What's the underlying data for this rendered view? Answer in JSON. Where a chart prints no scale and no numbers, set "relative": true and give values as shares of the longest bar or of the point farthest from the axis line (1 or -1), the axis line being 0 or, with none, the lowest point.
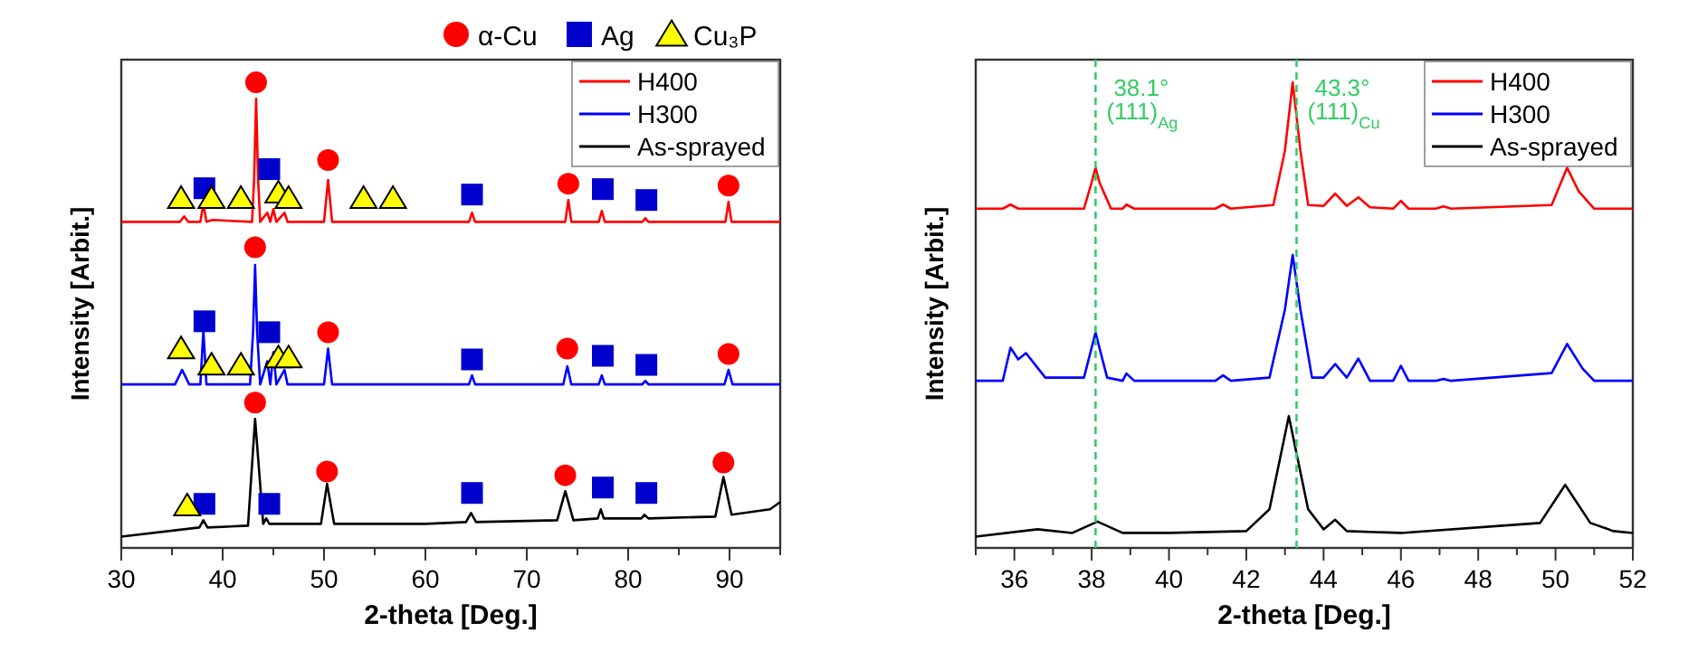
{
  "chart_data": [
    {
      "type": "line",
      "xlabel": "2-theta [Deg.]",
      "ylabel": "Intensity [Arbit.]",
      "relative": true,
      "xlim": [
        30,
        95
      ],
      "xticks": [
        30,
        {
          "value": 35,
          "label": null
        },
        40,
        {
          "value": 45,
          "label": null
        },
        50,
        {
          "value": 55,
          "label": null
        },
        60,
        {
          "value": 65,
          "label": null
        },
        70,
        {
          "value": 75,
          "label": null
        },
        80,
        {
          "value": 85,
          "label": null
        },
        90,
        {
          "value": 95,
          "label": null
        }
      ],
      "legend": "top right",
      "grid": false,
      "line_style": "solid",
      "series": [
        {
          "name": "H400",
          "color": "#ff0000",
          "x": [
            30,
            35.8,
            36.2,
            36.6,
            37.8,
            38.1,
            38.4,
            39,
            42.9,
            43.1,
            43.3,
            43.5,
            43.7,
            44.4,
            44.7,
            45,
            45.3,
            46.1,
            46.4,
            50,
            50.4,
            50.8,
            64.3,
            64.6,
            64.9,
            73.8,
            74.1,
            74.4,
            77.1,
            77.4,
            77.7,
            81.4,
            81.7,
            82,
            89.6,
            89.9,
            90.2,
            95
          ],
          "values": [
            0.693,
            0.693,
            0.705,
            0.693,
            0.693,
            0.733,
            0.693,
            0.697,
            0.693,
            0.785,
            0.964,
            0.785,
            0.693,
            0.713,
            0.693,
            0.721,
            0.693,
            0.713,
            0.693,
            0.693,
            0.785,
            0.693,
            0.693,
            0.713,
            0.693,
            0.693,
            0.741,
            0.693,
            0.693,
            0.717,
            0.693,
            0.693,
            0.701,
            0.693,
            0.693,
            0.737,
            0.693,
            0.693
          ]
        },
        {
          "name": "H300",
          "color": "#0000ff",
          "x": [
            30,
            35.3,
            36,
            36.7,
            37.8,
            38.1,
            38.4,
            42.7,
            43,
            43.2,
            43.4,
            43.7,
            44.4,
            44.7,
            45,
            45.3,
            46.1,
            46.4,
            50,
            50.4,
            50.8,
            64.3,
            64.6,
            64.9,
            73.6,
            74,
            74.4,
            77.1,
            77.4,
            77.7,
            81.4,
            81.7,
            82,
            89.5,
            89.9,
            90.3,
            95
          ],
          "values": [
            0.335,
            0.335,
            0.367,
            0.335,
            0.335,
            0.454,
            0.335,
            0.335,
            0.45,
            0.598,
            0.45,
            0.335,
            0.386,
            0.335,
            0.406,
            0.335,
            0.367,
            0.335,
            0.335,
            0.414,
            0.335,
            0.335,
            0.355,
            0.335,
            0.335,
            0.375,
            0.335,
            0.335,
            0.355,
            0.335,
            0.335,
            0.343,
            0.335,
            0.335,
            0.367,
            0.335,
            0.335
          ]
        },
        {
          "name": "As-sprayed",
          "color": "#000000",
          "x": [
            30,
            37.7,
            38.1,
            38.5,
            42.5,
            43.2,
            44,
            44.3,
            44.6,
            49.7,
            50.3,
            51,
            60,
            64,
            64.5,
            65,
            73,
            73.8,
            74.6,
            77,
            77.3,
            77.6,
            81.3,
            81.6,
            82,
            88.6,
            89.4,
            90.2,
            94,
            95
          ],
          "values": [
            0,
            0.02,
            0.036,
            0.02,
            0.024,
            0.259,
            0.028,
            0.04,
            0.028,
            0.028,
            0.116,
            0.028,
            0.028,
            0.032,
            0.052,
            0.032,
            0.036,
            0.1,
            0.036,
            0.04,
            0.06,
            0.04,
            0.04,
            0.048,
            0.04,
            0.044,
            0.131,
            0.048,
            0.06,
            0.076
          ]
        },
        {
          "name": "α-Cu",
          "type": "scatter",
          "marker": "circle",
          "color": "#ff0000",
          "x": [
            43.3,
            50.4,
            74.1,
            89.9,
            43.2,
            50.4,
            74,
            89.9,
            43.2,
            50.3,
            73.8,
            89.4
          ],
          "values": [
            1.0,
            0.829,
            0.777,
            0.773,
            0.637,
            0.45,
            0.414,
            0.402,
            0.295,
            0.143,
            0.135,
            0.163
          ]
        },
        {
          "name": "Ag",
          "type": "scatter",
          "marker": "square",
          "color": "#0000cc",
          "x": [
            38.2,
            44.6,
            64.6,
            77.5,
            81.8,
            38.2,
            44.6,
            64.6,
            77.5,
            81.8,
            38.2,
            44.6,
            64.6,
            77.5,
            81.8
          ],
          "values": [
            0.767,
            0.809,
            0.753,
            0.765,
            0.741,
            0.474,
            0.45,
            0.39,
            0.398,
            0.378,
            0.072,
            0.072,
            0.096,
            0.108,
            0.096
          ]
        },
        {
          "name": "Cu₃P",
          "type": "scatter",
          "marker": "triangle",
          "color": "#ffff00",
          "x": [
            35.9,
            38.9,
            41.8,
            45.5,
            46.5,
            53.9,
            56.8,
            35.9,
            38.9,
            41.8,
            45.5,
            46.5,
            36.5
          ],
          "values": [
            0.745,
            0.745,
            0.745,
            0.757,
            0.745,
            0.745,
            0.745,
            0.414,
            0.378,
            0.378,
            0.394,
            0.394,
            0.068
          ]
        }
      ]
    },
    {
      "type": "line",
      "xlabel": "2-theta [Deg.]",
      "ylabel": "Intensity [Arbit.]",
      "relative": true,
      "xlim": [
        35,
        52
      ],
      "xticks": [
        {
          "value": 35,
          "label": null
        },
        36,
        {
          "value": 37,
          "label": null
        },
        38,
        {
          "value": 39,
          "label": null
        },
        40,
        {
          "value": 41,
          "label": null
        },
        42,
        {
          "value": 43,
          "label": null
        },
        44,
        {
          "value": 45,
          "label": null
        },
        46,
        {
          "value": 47,
          "label": null
        },
        48,
        {
          "value": 49,
          "label": null
        },
        50,
        {
          "value": 51,
          "label": null
        },
        52
      ],
      "legend": "top right",
      "grid": false,
      "line_style": "solid",
      "ref_lines": [
        {
          "axis": "x",
          "value": 38.1,
          "label": "38.1°",
          "color": "#33cc66",
          "line_style": "dashed"
        },
        {
          "axis": "x",
          "value": 43.3,
          "label": "43.3°",
          "color": "#33cc66",
          "line_style": "dashed"
        }
      ],
      "annotations": [
        {
          "text": "(111)$_{Ag}$",
          "x": 38.1,
          "y": 0.95
        },
        {
          "text": "(111)$_{Cu}$",
          "x": 43.3,
          "y": 0.95
        }
      ],
      "series": [
        {
          "name": "H400",
          "color": "#ff0000",
          "x": [
            35,
            35.7,
            35.9,
            36.1,
            37.8,
            38.0,
            38.1,
            38.2,
            38.5,
            38.8,
            38.9,
            39.1,
            41.2,
            41.4,
            41.6,
            42.7,
            43.0,
            43.2,
            43.4,
            43.6,
            44.0,
            44.3,
            44.6,
            44.9,
            45.2,
            45.8,
            46.0,
            46.2,
            46.9,
            47.1,
            47.3,
            49.9,
            50.3,
            50.6,
            51,
            52
          ],
          "values": [
            0.722,
            0.722,
            0.731,
            0.722,
            0.722,
            0.78,
            0.812,
            0.78,
            0.722,
            0.722,
            0.731,
            0.722,
            0.722,
            0.731,
            0.722,
            0.73,
            0.85,
            1.0,
            0.85,
            0.73,
            0.728,
            0.755,
            0.728,
            0.747,
            0.725,
            0.722,
            0.739,
            0.722,
            0.722,
            0.727,
            0.722,
            0.73,
            0.812,
            0.76,
            0.722,
            0.722
          ]
        },
        {
          "name": "H300",
          "color": "#0000ff",
          "x": [
            35,
            35.7,
            35.9,
            36.1,
            36.3,
            36.8,
            37.8,
            38.1,
            38.4,
            38.8,
            38.9,
            39.1,
            41.2,
            41.4,
            41.6,
            42.6,
            43.0,
            43.2,
            43.4,
            43.7,
            44.0,
            44.3,
            44.6,
            44.9,
            45.2,
            45.8,
            46.0,
            46.2,
            46.9,
            47.1,
            47.3,
            49.9,
            50.3,
            50.7,
            51,
            52
          ],
          "values": [
            0.343,
            0.343,
            0.416,
            0.39,
            0.404,
            0.35,
            0.35,
            0.449,
            0.35,
            0.343,
            0.359,
            0.343,
            0.343,
            0.355,
            0.343,
            0.35,
            0.5,
            0.62,
            0.5,
            0.35,
            0.35,
            0.38,
            0.35,
            0.392,
            0.343,
            0.343,
            0.376,
            0.343,
            0.343,
            0.347,
            0.343,
            0.36,
            0.424,
            0.37,
            0.343,
            0.343
          ]
        },
        {
          "name": "As-sprayed",
          "color": "#000000",
          "x": [
            35,
            36.6,
            37.5,
            38.15,
            38.8,
            40,
            42,
            42.6,
            43.1,
            43.6,
            44.0,
            44.3,
            44.6,
            46,
            49.6,
            50.25,
            50.9,
            51.5,
            52
          ],
          "values": [
            0,
            0.016,
            0.008,
            0.033,
            0.008,
            0.008,
            0.012,
            0.06,
            0.265,
            0.06,
            0.016,
            0.037,
            0.012,
            0.008,
            0.03,
            0.114,
            0.03,
            0.012,
            0.008
          ]
        }
      ]
    }
  ]
}
